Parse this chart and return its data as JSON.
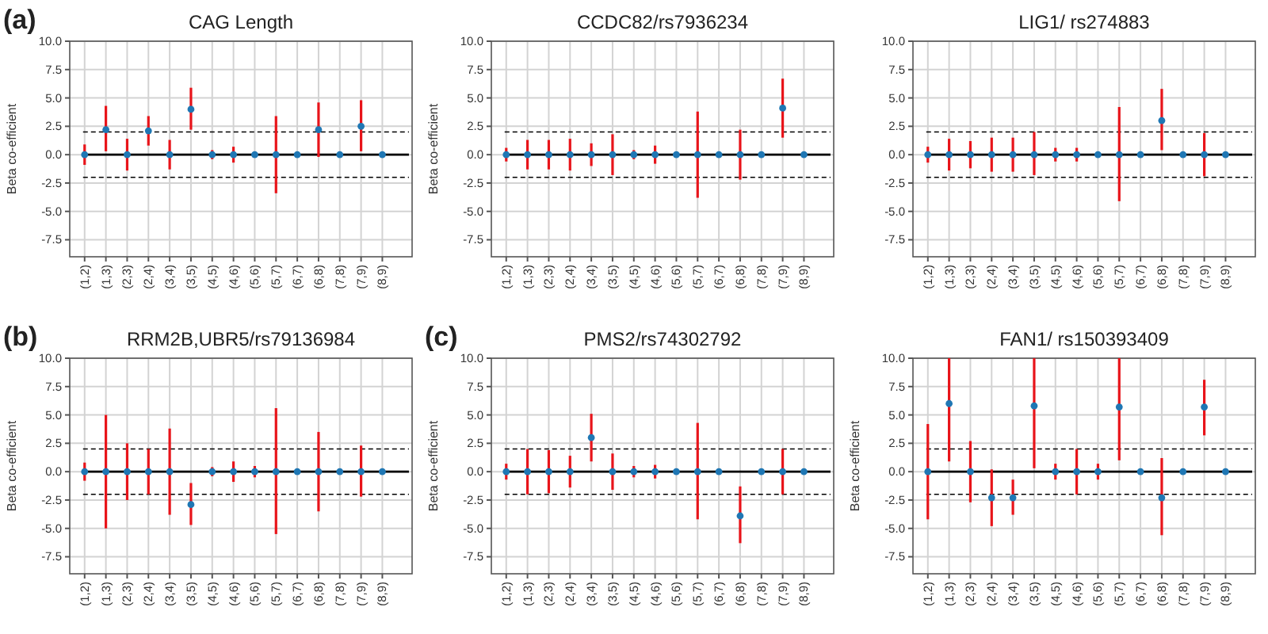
{
  "chart_data": [
    {
      "type": "scatter",
      "title": "CAG Length",
      "ylabel": "Beta co-efficient",
      "annotations": [
        "(a)"
      ],
      "categories": [
        "(1,2)",
        "(1,3)",
        "(2,3)",
        "(2,4)",
        "(3,4)",
        "(3,5)",
        "(4,5)",
        "(4,6)",
        "(5,6)",
        "(5,7)",
        "(6,7)",
        "(6,8)",
        "(7,8)",
        "(7,9)",
        "(8,9)"
      ],
      "series": [
        {
          "color": "#1f77b4",
          "values": [
            0,
            2.2,
            0,
            2.1,
            0,
            4.0,
            0,
            0,
            0,
            0,
            0,
            2.2,
            0,
            2.5,
            0
          ],
          "errors": [
            [
              -0.9,
              0.9
            ],
            [
              0.3,
              4.3
            ],
            [
              -1.4,
              1.4
            ],
            [
              0.8,
              3.4
            ],
            [
              -1.3,
              1.3
            ],
            [
              2.2,
              5.9
            ],
            [
              -0.4,
              0.4
            ],
            [
              -0.7,
              0.7
            ],
            null,
            [
              -3.4,
              3.4
            ],
            null,
            [
              -0.2,
              4.6
            ],
            null,
            [
              0.3,
              4.8
            ],
            null
          ]
        }
      ],
      "ref_lines": [
        {
          "axis": "y",
          "value": 0,
          "color": "#000000",
          "line_style": "solid"
        },
        {
          "axis": "y",
          "value": 2,
          "color": "#000000",
          "line_style": "dashed"
        },
        {
          "axis": "y",
          "value": -2,
          "color": "#000000",
          "line_style": "dashed"
        }
      ],
      "ylim": [
        -9,
        10
      ],
      "yticks": [
        {
          "value": -7.5,
          "label": "-7.5"
        },
        {
          "value": -5,
          "label": "-5.0"
        },
        {
          "value": -2.5,
          "label": "-2.5"
        },
        {
          "value": 0,
          "label": "0.0"
        },
        {
          "value": 2.5,
          "label": "2.5"
        },
        {
          "value": 5,
          "label": "5.0"
        },
        {
          "value": 7.5,
          "label": "7.5"
        },
        {
          "value": 10,
          "label": "10.0"
        }
      ],
      "grid": true,
      "marker": "circle"
    },
    {
      "type": "scatter",
      "title": "CCDC82/rs7936234",
      "ylabel": "Beta co-efficient",
      "categories": [
        "(1,2)",
        "(1,3)",
        "(2,3)",
        "(2,4)",
        "(3,4)",
        "(3,5)",
        "(4,5)",
        "(4,6)",
        "(5,6)",
        "(5,7)",
        "(6,7)",
        "(6,8)",
        "(7,8)",
        "(7,9)",
        "(8,9)"
      ],
      "series": [
        {
          "color": "#1f77b4",
          "values": [
            0,
            0,
            0,
            0,
            0,
            0,
            0,
            0,
            0,
            0,
            0,
            0,
            0,
            4.1,
            0
          ],
          "errors": [
            [
              -0.6,
              0.6
            ],
            [
              -1.3,
              1.3
            ],
            [
              -1.3,
              1.3
            ],
            [
              -1.4,
              1.4
            ],
            [
              -1.0,
              1.0
            ],
            [
              -1.8,
              1.8
            ],
            [
              -0.4,
              0.4
            ],
            [
              -0.8,
              0.8
            ],
            null,
            [
              -3.8,
              3.8
            ],
            null,
            [
              -2.2,
              2.2
            ],
            null,
            [
              1.5,
              6.7
            ],
            null
          ]
        }
      ],
      "ref_lines": [
        {
          "axis": "y",
          "value": 0,
          "color": "#000000",
          "line_style": "solid"
        },
        {
          "axis": "y",
          "value": 2,
          "color": "#000000",
          "line_style": "dashed"
        },
        {
          "axis": "y",
          "value": -2,
          "color": "#000000",
          "line_style": "dashed"
        }
      ],
      "ylim": [
        -9,
        10
      ],
      "yticks": [
        {
          "value": -7.5,
          "label": "-7.5"
        },
        {
          "value": -5,
          "label": "-5.0"
        },
        {
          "value": -2.5,
          "label": "-2.5"
        },
        {
          "value": 0,
          "label": "0.0"
        },
        {
          "value": 2.5,
          "label": "2.5"
        },
        {
          "value": 5,
          "label": "5.0"
        },
        {
          "value": 7.5,
          "label": "7.5"
        },
        {
          "value": 10,
          "label": "10.0"
        }
      ],
      "grid": true,
      "marker": "circle"
    },
    {
      "type": "scatter",
      "title": "LIG1/ rs274883",
      "categories": [
        "(1,2)",
        "(1,3)",
        "(2,3)",
        "(2,4)",
        "(3,4)",
        "(3,5)",
        "(4,5)",
        "(4,6)",
        "(5,6)",
        "(5,7)",
        "(6,7)",
        "(6,8)",
        "(7,8)",
        "(7,9)",
        "(8,9)"
      ],
      "series": [
        {
          "color": "#1f77b4",
          "values": [
            0,
            0,
            0,
            0,
            0,
            0,
            0,
            0,
            0,
            0,
            0,
            3.0,
            0,
            0,
            0
          ],
          "errors": [
            [
              -0.7,
              0.7
            ],
            [
              -1.4,
              1.4
            ],
            [
              -1.2,
              1.2
            ],
            [
              -1.5,
              1.5
            ],
            [
              -1.5,
              1.5
            ],
            [
              -1.8,
              2.0
            ],
            [
              -0.6,
              0.6
            ],
            [
              -0.6,
              0.6
            ],
            null,
            [
              -4.1,
              4.2
            ],
            null,
            [
              0.4,
              5.8
            ],
            null,
            [
              -1.9,
              1.9
            ],
            null
          ]
        }
      ],
      "ref_lines": [
        {
          "axis": "y",
          "value": 0,
          "color": "#000000",
          "line_style": "solid"
        },
        {
          "axis": "y",
          "value": 2,
          "color": "#000000",
          "line_style": "dashed"
        },
        {
          "axis": "y",
          "value": -2,
          "color": "#000000",
          "line_style": "dashed"
        }
      ],
      "ylim": [
        -9,
        10
      ],
      "yticks": [
        {
          "value": -7.5,
          "label": "-7.5"
        },
        {
          "value": -5,
          "label": "-5.0"
        },
        {
          "value": -2.5,
          "label": "-2.5"
        },
        {
          "value": 0,
          "label": "0.0"
        },
        {
          "value": 2.5,
          "label": "2.5"
        },
        {
          "value": 5,
          "label": "5.0"
        },
        {
          "value": 7.5,
          "label": "7.5"
        },
        {
          "value": 10,
          "label": "10.0"
        }
      ],
      "grid": true,
      "marker": "circle"
    },
    {
      "type": "scatter",
      "title": "RRM2B,UBR5/rs79136984",
      "ylabel": "Beta co-efficient",
      "annotations": [
        "(b)"
      ],
      "categories": [
        "(1,2)",
        "(1,3)",
        "(2,3)",
        "(2,4)",
        "(3,4)",
        "(3,5)",
        "(4,5)",
        "(4,6)",
        "(5,6)",
        "(5,7)",
        "(6,7)",
        "(6,8)",
        "(7,8)",
        "(7,9)",
        "(8,9)"
      ],
      "series": [
        {
          "color": "#1f77b4",
          "values": [
            0,
            0,
            0,
            0,
            0,
            -2.9,
            0,
            0,
            0,
            0,
            0,
            0,
            0,
            0,
            0
          ],
          "errors": [
            [
              -0.8,
              0.8
            ],
            [
              -5.0,
              5.0
            ],
            [
              -2.5,
              2.5
            ],
            [
              -2.0,
              2.0
            ],
            [
              -3.8,
              3.8
            ],
            [
              -4.7,
              -1.0
            ],
            [
              -0.4,
              0.4
            ],
            [
              -0.9,
              0.9
            ],
            [
              -0.5,
              0.5
            ],
            [
              -5.5,
              5.6
            ],
            null,
            [
              -3.5,
              3.5
            ],
            null,
            [
              -2.2,
              2.3
            ],
            null
          ]
        }
      ],
      "ref_lines": [
        {
          "axis": "y",
          "value": 0,
          "color": "#000000",
          "line_style": "solid"
        },
        {
          "axis": "y",
          "value": 2,
          "color": "#000000",
          "line_style": "dashed"
        },
        {
          "axis": "y",
          "value": -2,
          "color": "#000000",
          "line_style": "dashed"
        }
      ],
      "ylim": [
        -9,
        10
      ],
      "yticks": [
        {
          "value": -7.5,
          "label": "-7.5"
        },
        {
          "value": -5,
          "label": "-5.0"
        },
        {
          "value": -2.5,
          "label": "-2.5"
        },
        {
          "value": 0,
          "label": "0.0"
        },
        {
          "value": 2.5,
          "label": "2.5"
        },
        {
          "value": 5,
          "label": "5.0"
        },
        {
          "value": 7.5,
          "label": "7.5"
        },
        {
          "value": 10,
          "label": "10.0"
        }
      ],
      "grid": true,
      "marker": "circle"
    },
    {
      "type": "scatter",
      "title": "PMS2/rs74302792",
      "ylabel": "Beta co-efficient",
      "annotations": [
        "(c)"
      ],
      "categories": [
        "(1,2)",
        "(1,3)",
        "(2,3)",
        "(2,4)",
        "(3,4)",
        "(3,5)",
        "(4,5)",
        "(4,6)",
        "(5,6)",
        "(5,7)",
        "(6,7)",
        "(6,8)",
        "(7,8)",
        "(7,9)",
        "(8,9)"
      ],
      "series": [
        {
          "color": "#1f77b4",
          "values": [
            0,
            0,
            0,
            0,
            3.0,
            0,
            0,
            0,
            0,
            0,
            0,
            -3.9,
            0,
            0,
            0
          ],
          "errors": [
            [
              -0.7,
              0.7
            ],
            [
              -2.0,
              2.0
            ],
            [
              -1.9,
              1.9
            ],
            [
              -1.4,
              1.4
            ],
            [
              0.9,
              5.1
            ],
            [
              -1.6,
              1.6
            ],
            [
              -0.5,
              0.5
            ],
            [
              -0.6,
              0.6
            ],
            null,
            [
              -4.2,
              4.3
            ],
            null,
            [
              -6.3,
              -1.3
            ],
            null,
            [
              -2.0,
              2.0
            ],
            null
          ]
        }
      ],
      "ref_lines": [
        {
          "axis": "y",
          "value": 0,
          "color": "#000000",
          "line_style": "solid"
        },
        {
          "axis": "y",
          "value": 2,
          "color": "#000000",
          "line_style": "dashed"
        },
        {
          "axis": "y",
          "value": -2,
          "color": "#000000",
          "line_style": "dashed"
        }
      ],
      "ylim": [
        -9,
        10
      ],
      "yticks": [
        {
          "value": -7.5,
          "label": "-7.5"
        },
        {
          "value": -5,
          "label": "-5.0"
        },
        {
          "value": -2.5,
          "label": "-2.5"
        },
        {
          "value": 0,
          "label": "0.0"
        },
        {
          "value": 2.5,
          "label": "2.5"
        },
        {
          "value": 5,
          "label": "5.0"
        },
        {
          "value": 7.5,
          "label": "7.5"
        },
        {
          "value": 10,
          "label": "10.0"
        }
      ],
      "grid": true,
      "marker": "circle"
    },
    {
      "type": "scatter",
      "title": "FAN1/ rs150393409",
      "ylabel": "Beta co-efficient",
      "categories": [
        "(1,2)",
        "(1,3)",
        "(2,3)",
        "(2,4)",
        "(3,4)",
        "(3,5)",
        "(4,5)",
        "(4,6)",
        "(5,6)",
        "(5,7)",
        "(6,7)",
        "(6,8)",
        "(7,8)",
        "(7,9)",
        "(8,9)"
      ],
      "series": [
        {
          "color": "#1f77b4",
          "values": [
            0,
            6.0,
            0,
            -2.3,
            -2.3,
            5.8,
            0,
            0,
            0,
            5.7,
            0,
            -2.3,
            0,
            5.7,
            0
          ],
          "errors": [
            [
              -4.2,
              4.2
            ],
            [
              0.9,
              10
            ],
            [
              -2.7,
              2.7
            ],
            [
              -4.8,
              0.2
            ],
            [
              -3.8,
              -0.7
            ],
            [
              0.3,
              10
            ],
            [
              -0.7,
              0.7
            ],
            [
              -2.0,
              2.0
            ],
            [
              -0.7,
              0.7
            ],
            [
              1.0,
              10
            ],
            null,
            [
              -5.6,
              1.2
            ],
            null,
            [
              3.2,
              8.1
            ],
            null
          ]
        }
      ],
      "ref_lines": [
        {
          "axis": "y",
          "value": 0,
          "color": "#000000",
          "line_style": "solid"
        },
        {
          "axis": "y",
          "value": 2,
          "color": "#000000",
          "line_style": "dashed"
        },
        {
          "axis": "y",
          "value": -2,
          "color": "#000000",
          "line_style": "dashed"
        }
      ],
      "ylim": [
        -9,
        10
      ],
      "yticks": [
        {
          "value": -7.5,
          "label": "-7.5"
        },
        {
          "value": -5,
          "label": "-5.0"
        },
        {
          "value": -2.5,
          "label": "-2.5"
        },
        {
          "value": 0,
          "label": "0.0"
        },
        {
          "value": 2.5,
          "label": "2.5"
        },
        {
          "value": 5,
          "label": "5.0"
        },
        {
          "value": 7.5,
          "label": "7.5"
        },
        {
          "value": 10,
          "label": "10.0"
        }
      ],
      "grid": true,
      "marker": "circle"
    }
  ]
}
